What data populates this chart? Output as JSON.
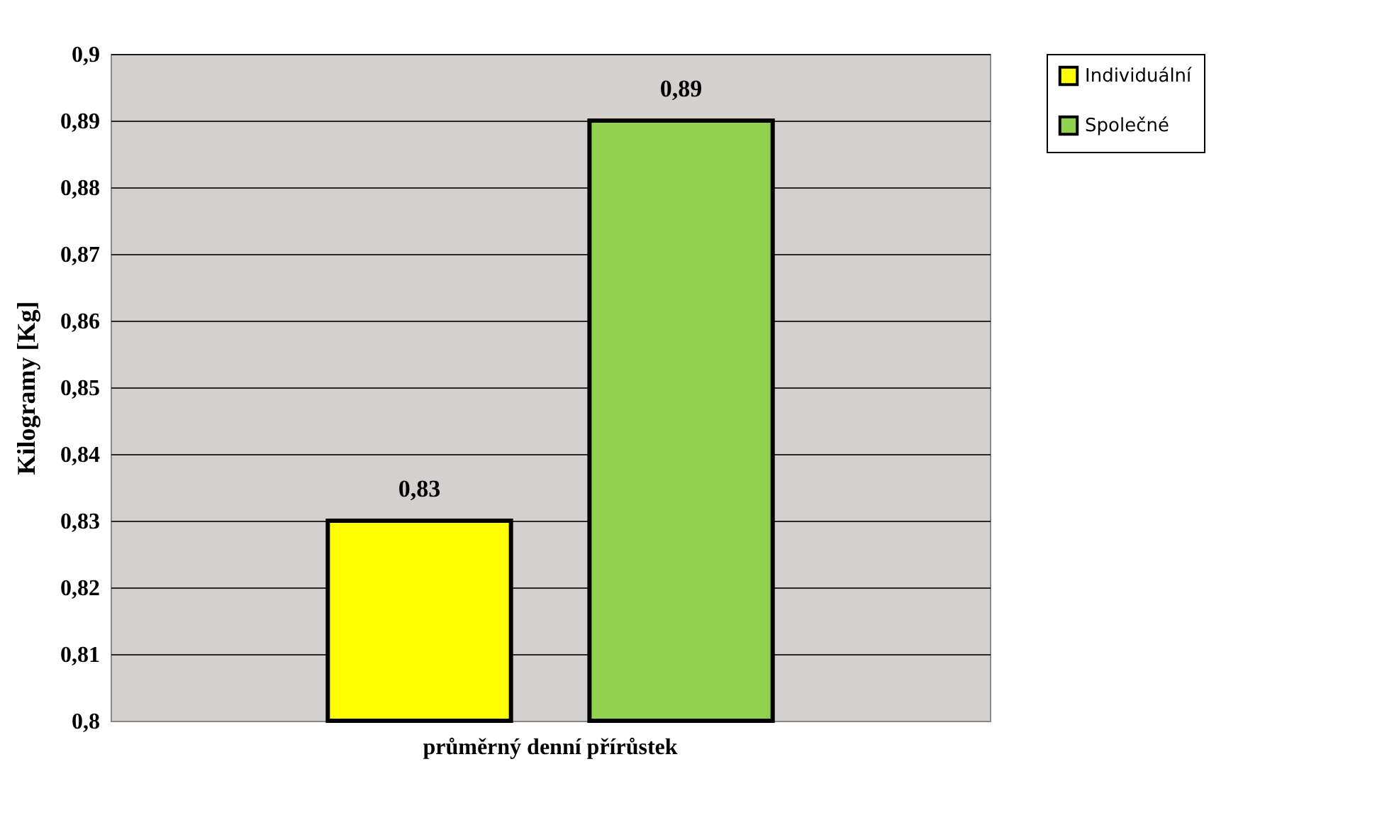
{
  "chart_data": {
    "type": "bar",
    "ylabel": "Kilogramy [Kg]",
    "categories": [
      "průměrný denní přírůstek"
    ],
    "series": [
      {
        "name": "Individuální",
        "color": "#ffff00",
        "values": [
          0.83
        ],
        "value_labels": [
          "0,83"
        ]
      },
      {
        "name": "Společné",
        "color": "#92d050",
        "values": [
          0.89
        ],
        "value_labels": [
          "0,89"
        ]
      }
    ],
    "ylim": [
      0.8,
      0.9
    ],
    "yticks": [
      {
        "value": 0.8,
        "label": "0,8"
      },
      {
        "value": 0.81,
        "label": "0,81"
      },
      {
        "value": 0.82,
        "label": "0,82"
      },
      {
        "value": 0.83,
        "label": "0,83"
      },
      {
        "value": 0.84,
        "label": "0,84"
      },
      {
        "value": 0.85,
        "label": "0,85"
      },
      {
        "value": 0.86,
        "label": "0,86"
      },
      {
        "value": 0.87,
        "label": "0,87"
      },
      {
        "value": 0.88,
        "label": "0,88"
      },
      {
        "value": 0.89,
        "label": "0,89"
      },
      {
        "value": 0.9,
        "label": "0,9"
      }
    ],
    "grid": "y",
    "legend": "right"
  }
}
